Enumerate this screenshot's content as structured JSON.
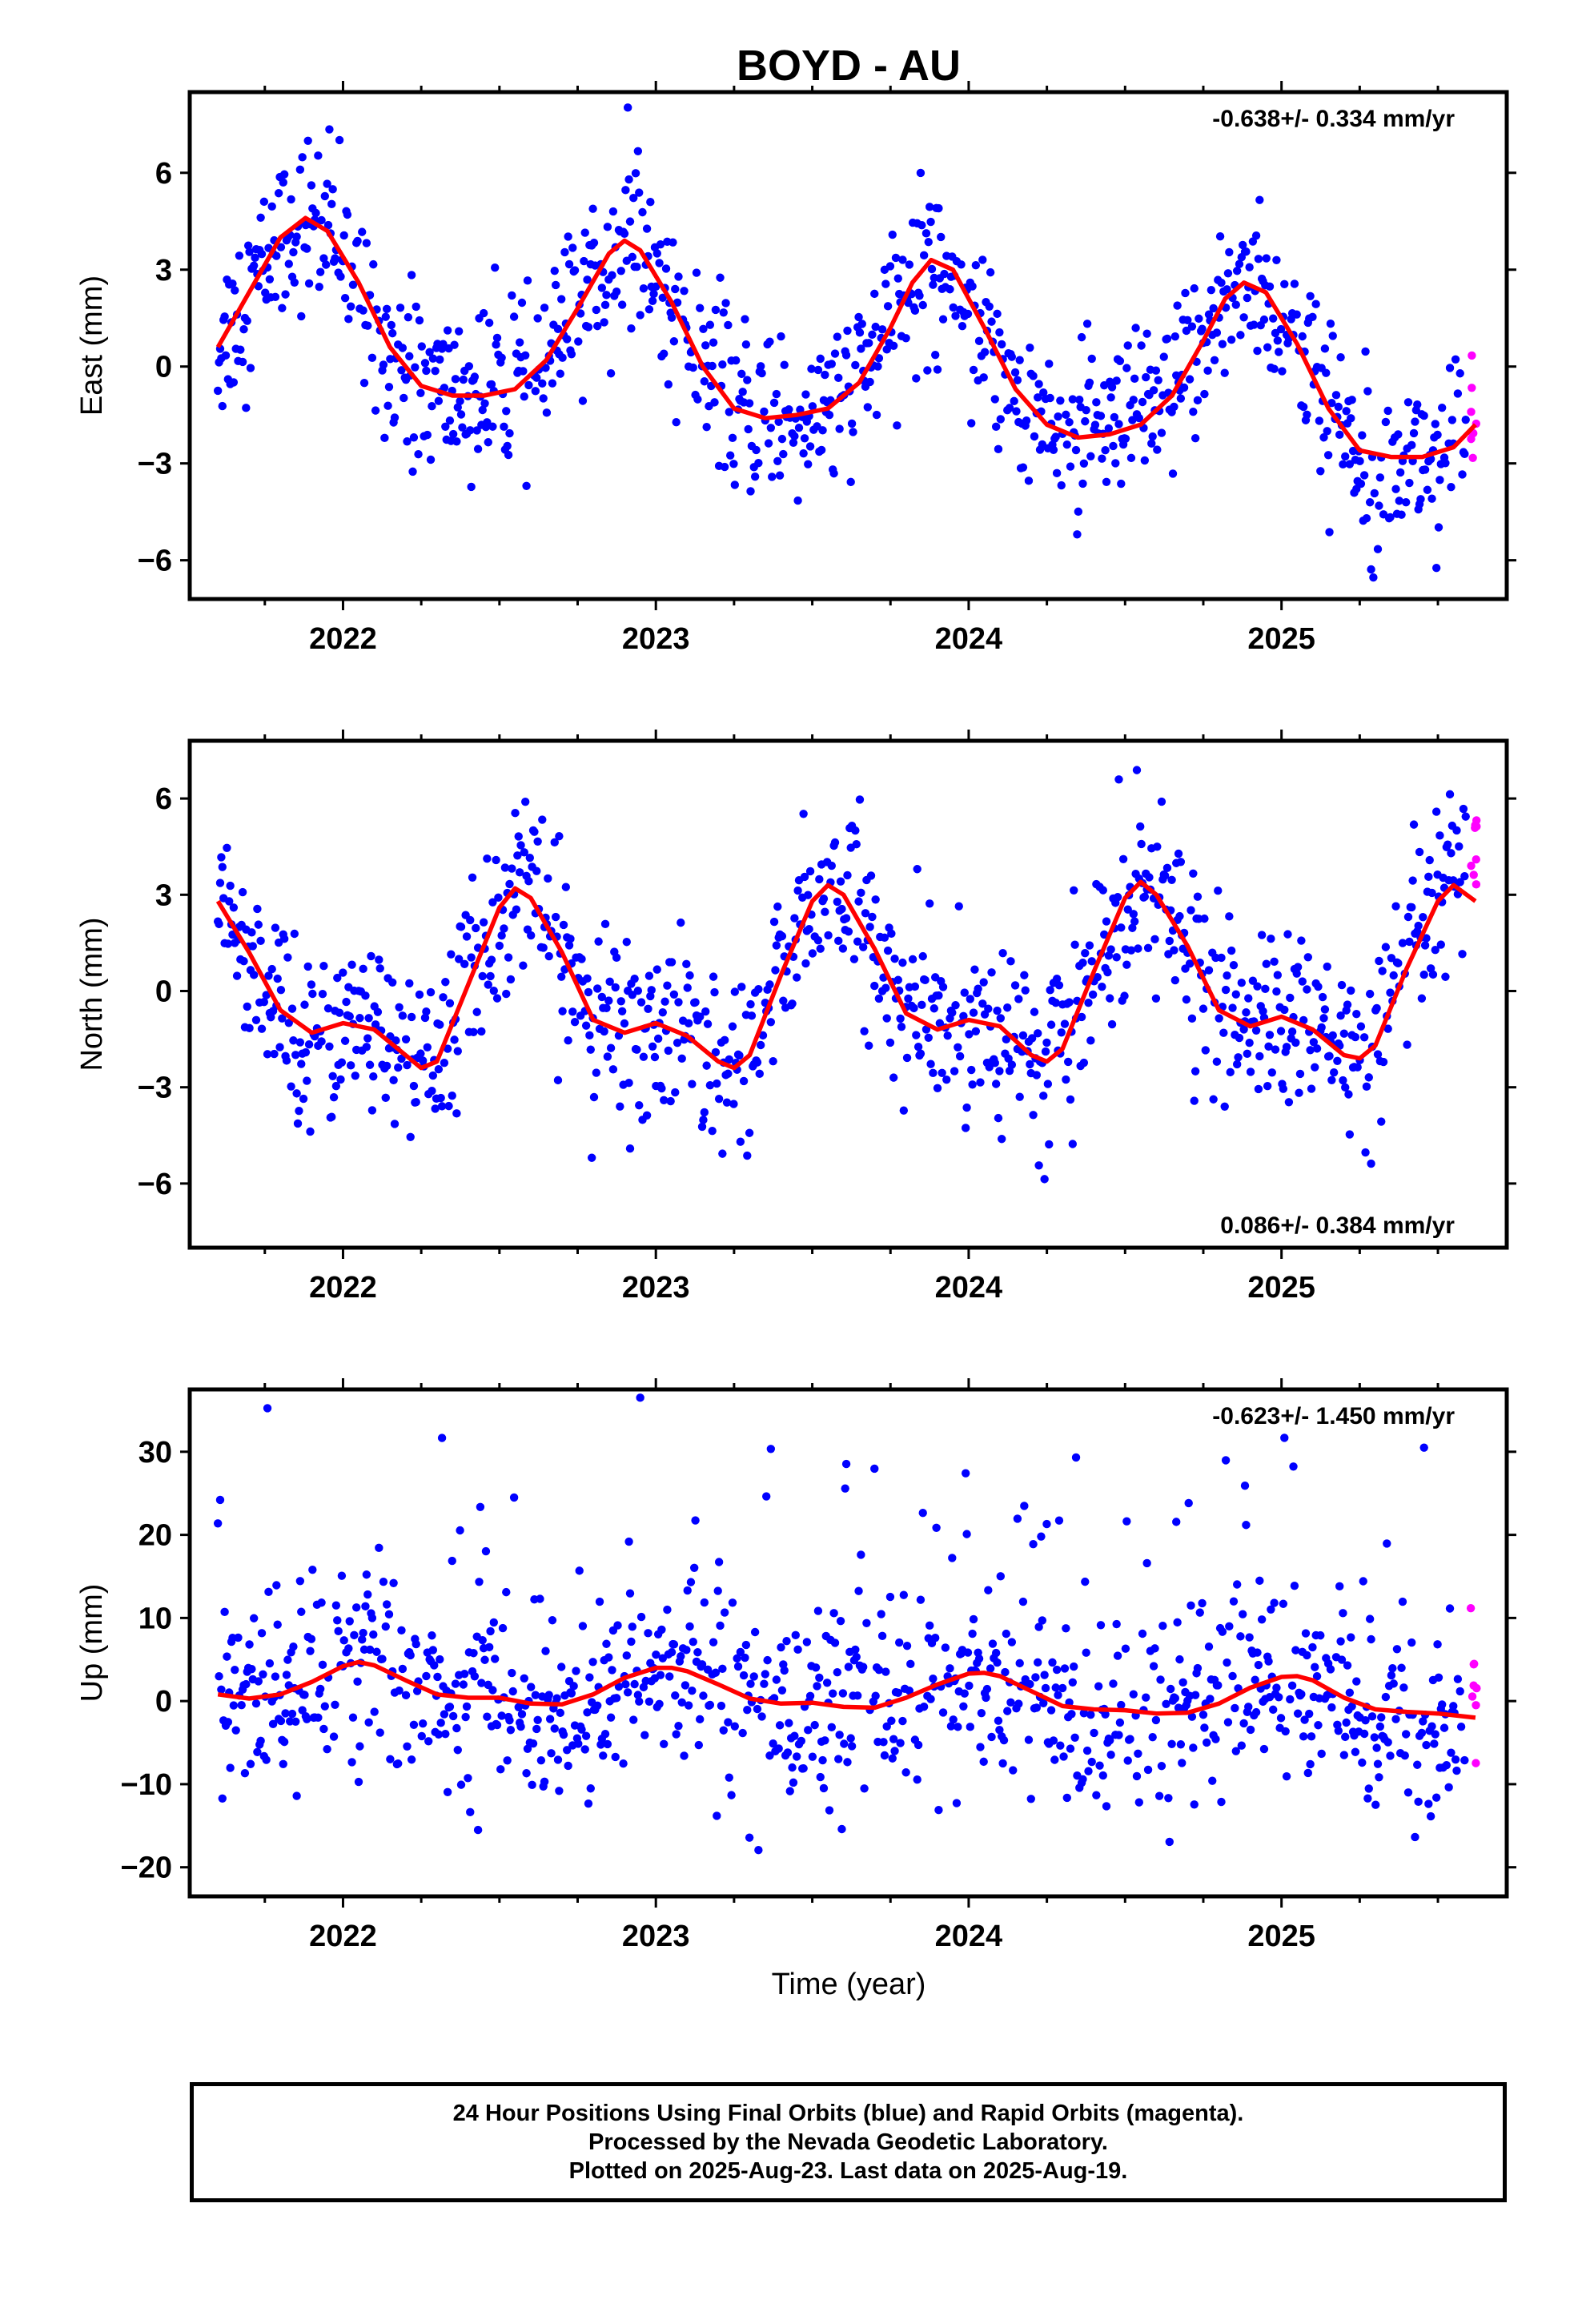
{
  "station_title": "BOYD - AU",
  "xlabel": "Time (year)",
  "footer": {
    "line1": "24 Hour Positions Using Final Orbits (blue) and Rapid Orbits (magenta).",
    "line2": "Processed by the Nevada Geodetic Laboratory.",
    "line3": "Plotted on 2025-Aug-23. Last data on 2025-Aug-19."
  },
  "colors": {
    "final": "#0000ff",
    "rapid": "#ff00ff",
    "fit": "#ff0000",
    "axis": "#000000"
  },
  "chart_data": [
    {
      "type": "scatter",
      "component": "East",
      "ylabel": "East (mm)",
      "rate_text": "-0.638+/- 0.334 mm/yr",
      "rate_position": "top-right",
      "xlim": [
        2021.51,
        2025.72
      ],
      "ylim": [
        -7.2,
        8.5
      ],
      "yticks": [
        -6,
        -3,
        0,
        3,
        6
      ],
      "ytick_labels": [
        "−6",
        "−3",
        "0",
        "3",
        "6"
      ],
      "xticks": [
        2022,
        2023,
        2024,
        2025
      ],
      "xtick_labels": [
        "2022",
        "2023",
        "2024",
        "2025"
      ],
      "series": [
        {
          "name": "Final Orbits",
          "color": "#0000ff",
          "points": []
        },
        {
          "name": "Rapid Orbits",
          "color": "#ff00ff",
          "points": []
        },
        {
          "name": "Fit",
          "color": "#ff0000",
          "x": [
            2021.6,
            2021.7,
            2021.8,
            2021.88,
            2021.95,
            2022.05,
            2022.15,
            2022.25,
            2022.35,
            2022.45,
            2022.55,
            2022.65,
            2022.75,
            2022.85,
            2022.9,
            2022.95,
            2023.05,
            2023.15,
            2023.25,
            2023.35,
            2023.45,
            2023.55,
            2023.65,
            2023.75,
            2023.82,
            2023.88,
            2023.95,
            2024.05,
            2024.15,
            2024.25,
            2024.35,
            2024.45,
            2024.55,
            2024.65,
            2024.75,
            2024.82,
            2024.88,
            2024.95,
            2025.05,
            2025.15,
            2025.25,
            2025.35,
            2025.45,
            2025.55,
            2025.62
          ],
          "values": [
            0.6,
            2.3,
            4.0,
            4.6,
            4.2,
            2.6,
            0.6,
            -0.6,
            -0.9,
            -0.9,
            -0.7,
            0.2,
            1.8,
            3.5,
            3.9,
            3.6,
            2.0,
            0.0,
            -1.3,
            -1.6,
            -1.5,
            -1.3,
            -0.5,
            1.2,
            2.6,
            3.3,
            3.0,
            1.2,
            -0.7,
            -1.8,
            -2.2,
            -2.1,
            -1.8,
            -0.9,
            0.8,
            2.1,
            2.6,
            2.3,
            0.7,
            -1.3,
            -2.6,
            -2.8,
            -2.8,
            -2.5,
            -1.8
          ]
        }
      ]
    },
    {
      "type": "scatter",
      "component": "North",
      "ylabel": "North (mm)",
      "rate_text": "0.086+/- 0.384 mm/yr",
      "rate_position": "bottom-right",
      "xlim": [
        2021.51,
        2025.72
      ],
      "ylim": [
        -8.0,
        7.8
      ],
      "yticks": [
        -6,
        -3,
        0,
        3,
        6
      ],
      "ytick_labels": [
        "−6",
        "−3",
        "0",
        "3",
        "6"
      ],
      "xticks": [
        2022,
        2023,
        2024,
        2025
      ],
      "xtick_labels": [
        "2022",
        "2023",
        "2024",
        "2025"
      ],
      "series": [
        {
          "name": "Final Orbits",
          "color": "#0000ff",
          "points": []
        },
        {
          "name": "Rapid Orbits",
          "color": "#ff00ff",
          "points": []
        },
        {
          "name": "Fit",
          "color": "#ff0000",
          "x": [
            2021.6,
            2021.7,
            2021.8,
            2021.9,
            2022.0,
            2022.1,
            2022.2,
            2022.25,
            2022.3,
            2022.4,
            2022.5,
            2022.55,
            2022.6,
            2022.7,
            2022.8,
            2022.9,
            2023.0,
            2023.1,
            2023.2,
            2023.25,
            2023.3,
            2023.4,
            2023.5,
            2023.55,
            2023.6,
            2023.7,
            2023.8,
            2023.9,
            2024.0,
            2024.1,
            2024.2,
            2024.25,
            2024.3,
            2024.4,
            2024.5,
            2024.55,
            2024.6,
            2024.7,
            2024.8,
            2024.9,
            2025.0,
            2025.1,
            2025.2,
            2025.25,
            2025.3,
            2025.4,
            2025.5,
            2025.55,
            2025.62
          ],
          "values": [
            2.8,
            1.2,
            -0.6,
            -1.3,
            -1.0,
            -1.2,
            -2.0,
            -2.4,
            -2.2,
            0.2,
            2.6,
            3.2,
            2.9,
            1.2,
            -0.9,
            -1.3,
            -1.0,
            -1.4,
            -2.2,
            -2.4,
            -2.0,
            0.5,
            2.8,
            3.3,
            3.0,
            1.3,
            -0.7,
            -1.2,
            -0.9,
            -1.1,
            -2.0,
            -2.2,
            -1.8,
            0.6,
            2.9,
            3.4,
            3.0,
            1.4,
            -0.6,
            -1.1,
            -0.8,
            -1.2,
            -2.0,
            -2.1,
            -1.7,
            0.7,
            2.8,
            3.3,
            2.8
          ]
        }
      ]
    },
    {
      "type": "scatter",
      "component": "Up",
      "ylabel": "Up (mm)",
      "rate_text": "-0.623+/- 1.450 mm/yr",
      "rate_position": "top-right",
      "xlim": [
        2021.51,
        2025.72
      ],
      "ylim": [
        -23.5,
        37.5
      ],
      "yticks": [
        -20,
        -10,
        0,
        10,
        20,
        30
      ],
      "ytick_labels": [
        "−20",
        "−10",
        "0",
        "10",
        "20",
        "30"
      ],
      "xticks": [
        2022,
        2023,
        2024,
        2025
      ],
      "xtick_labels": [
        "2022",
        "2023",
        "2024",
        "2025"
      ],
      "series": [
        {
          "name": "Final Orbits",
          "color": "#0000ff",
          "points": []
        },
        {
          "name": "Rapid Orbits",
          "color": "#ff00ff",
          "points": []
        },
        {
          "name": "Fit",
          "color": "#ff0000",
          "x": [
            2021.6,
            2021.7,
            2021.8,
            2021.9,
            2022.0,
            2022.05,
            2022.1,
            2022.2,
            2022.3,
            2022.4,
            2022.5,
            2022.6,
            2022.7,
            2022.8,
            2022.9,
            2023.0,
            2023.05,
            2023.1,
            2023.2,
            2023.3,
            2023.4,
            2023.5,
            2023.6,
            2023.7,
            2023.8,
            2023.9,
            2024.0,
            2024.05,
            2024.1,
            2024.2,
            2024.3,
            2024.4,
            2024.5,
            2024.6,
            2024.7,
            2024.8,
            2024.9,
            2025.0,
            2025.05,
            2025.1,
            2025.2,
            2025.3,
            2025.4,
            2025.5,
            2025.62
          ],
          "values": [
            0.8,
            0.3,
            0.8,
            2.3,
            4.2,
            4.7,
            4.3,
            2.5,
            0.8,
            0.4,
            0.4,
            -0.3,
            -0.4,
            0.8,
            2.8,
            4.0,
            4.0,
            3.6,
            2.0,
            0.3,
            -0.3,
            -0.2,
            -0.7,
            -0.8,
            0.4,
            2.0,
            3.3,
            3.4,
            3.0,
            1.2,
            -0.6,
            -1.0,
            -1.1,
            -1.5,
            -1.4,
            -0.3,
            1.6,
            2.9,
            3.0,
            2.5,
            0.4,
            -1.0,
            -1.3,
            -1.5,
            -2.0
          ]
        }
      ]
    }
  ]
}
